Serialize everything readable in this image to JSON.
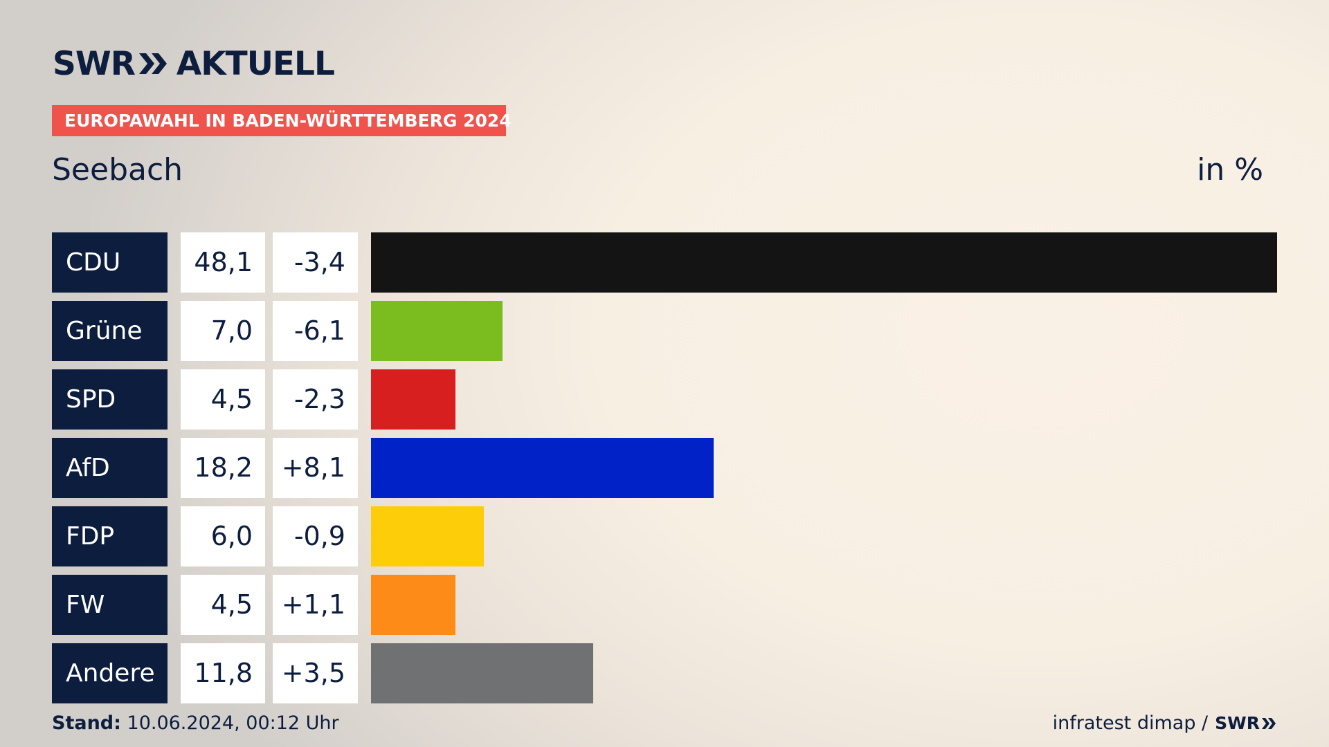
{
  "brand": {
    "logo_left": "SWR",
    "logo_right": "AKTUELL"
  },
  "header": {
    "badge": "EUROPAWAHL IN BADEN-WÜRTTEMBERG 2024",
    "region": "Seebach",
    "unit": "in %"
  },
  "footer": {
    "stand_label": "Stand:",
    "stand_value": "10.06.2024, 00:12 Uhr",
    "source": "infratest dimap /",
    "source_brand": "SWR"
  },
  "chart_data": {
    "type": "bar",
    "orientation": "horizontal",
    "categories": [
      "CDU",
      "Grüne",
      "SPD",
      "AfD",
      "FDP",
      "FW",
      "Andere"
    ],
    "values": [
      48.1,
      7.0,
      4.5,
      18.2,
      6.0,
      4.5,
      11.8
    ],
    "value_labels": [
      "48,1",
      "7,0",
      "4,5",
      "18,2",
      "6,0",
      "4,5",
      "11,8"
    ],
    "changes": [
      -3.4,
      -6.1,
      -2.3,
      8.1,
      -0.9,
      1.1,
      3.5
    ],
    "change_labels": [
      "-3,4",
      "-6,1",
      "-2,3",
      "+8,1",
      "-0,9",
      "+1,1",
      "+3,5"
    ],
    "colors": [
      "#141414",
      "#7bbd1e",
      "#d81f20",
      "#0122c6",
      "#fdcd0a",
      "#fc8c17",
      "#6f7173"
    ],
    "xlim": [
      0,
      48.1
    ],
    "grid": false
  }
}
